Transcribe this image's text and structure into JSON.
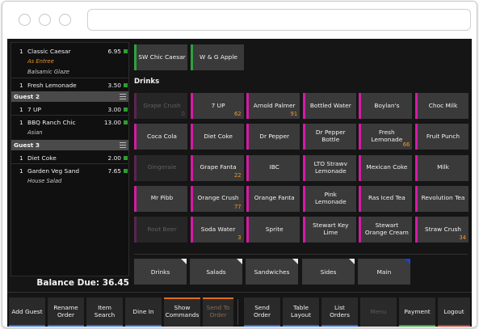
{
  "browser": {
    "url": ""
  },
  "check": {
    "items": [
      {
        "qty": "1",
        "name": "Classic Caesar",
        "price": "6.95"
      },
      {
        "qty": "1",
        "name": "Fresh Lemonade",
        "price": "3.50"
      },
      {
        "qty": "1",
        "name": "7 UP",
        "price": "3.00"
      },
      {
        "qty": "1",
        "name": "BBQ Ranch Chic",
        "price": "13.00"
      },
      {
        "qty": "1",
        "name": "Diet Coke",
        "price": "2.00"
      },
      {
        "qty": "1",
        "name": "Garden Veg Sand",
        "price": "7.65"
      }
    ],
    "modifiers": {
      "caesar_1": "As Entree",
      "caesar_2": "Balsamic Glaze",
      "bbq": "Asian",
      "garden": "House Salad"
    },
    "guests": [
      "Guest 2",
      "Guest 3"
    ],
    "balance": "Balance Due: 36.45"
  },
  "top_items": [
    "SW Chic Caesar",
    "W & G Apple"
  ],
  "section": "Drinks",
  "drinks": [
    {
      "name": "Grape Crush",
      "qty": "0",
      "dim": true
    },
    {
      "name": "7 UP",
      "qty": "62"
    },
    {
      "name": "Arnold Palmer",
      "qty": "91"
    },
    {
      "name": "Bottled Water",
      "qty": ""
    },
    {
      "name": "Boylan's",
      "qty": ""
    },
    {
      "name": "Choc Milk",
      "qty": ""
    },
    {
      "name": "Coca Cola",
      "qty": ""
    },
    {
      "name": "Diet Coke",
      "qty": ""
    },
    {
      "name": "Dr Pepper",
      "qty": ""
    },
    {
      "name": "Dr Pepper Bottle",
      "qty": ""
    },
    {
      "name": "Fresh Lemonade",
      "qty": "66"
    },
    {
      "name": "Fruit Punch",
      "qty": ""
    },
    {
      "name": "Gingerale",
      "qty": "",
      "dim": true
    },
    {
      "name": "Grape Fanta",
      "qty": "22"
    },
    {
      "name": "IBC",
      "qty": ""
    },
    {
      "name": "LTO Strawv Lemonade",
      "qty": ""
    },
    {
      "name": "Mexican Coke",
      "qty": ""
    },
    {
      "name": "Milk",
      "qty": ""
    },
    {
      "name": "Mr Pibb",
      "qty": ""
    },
    {
      "name": "Orange Crush",
      "qty": "77"
    },
    {
      "name": "Orange Fanta",
      "qty": ""
    },
    {
      "name": "Pink Lemonade",
      "qty": ""
    },
    {
      "name": "Ras Iced Tea",
      "qty": ""
    },
    {
      "name": "Revolution Tea",
      "qty": ""
    },
    {
      "name": "Root Beer",
      "qty": "",
      "dim": true
    },
    {
      "name": "Soda Water",
      "qty": "3"
    },
    {
      "name": "Sprite",
      "qty": ""
    },
    {
      "name": "Stewart Key Lime",
      "qty": ""
    },
    {
      "name": "Stewart Orange Cream",
      "qty": ""
    },
    {
      "name": "Straw Crush",
      "qty": "34"
    }
  ],
  "categories": [
    "Drinks",
    "Salads",
    "Sandwiches",
    "Sides",
    "Main"
  ],
  "toolbar": [
    "Add Guest",
    "Rename Order",
    "Item Search",
    "Dine In",
    "Show Commands",
    "Send To Order",
    "Send Order",
    "Table Layout",
    "List Orders",
    "Menu",
    "Payment",
    "Logout"
  ],
  "colors": {
    "item_pink": "#d51aa4",
    "item_green": "#2fa140",
    "qty_orange": "#f0982e",
    "blue_accent": "#2b6fd8",
    "red_accent": "#c0392b"
  }
}
